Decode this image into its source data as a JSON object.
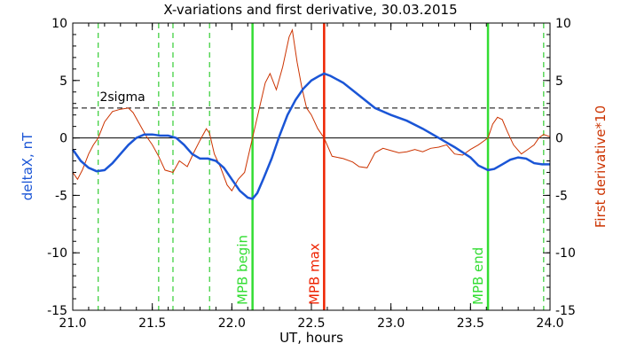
{
  "chart_data": {
    "type": "line",
    "title": "X-variations and first derivative, 30.03.2015",
    "xlabel": "UT, hours",
    "ylabel_left": "deltaX, nT",
    "ylabel_right": "First derivative*10",
    "xlim": [
      21.0,
      24.0
    ],
    "ylim": [
      -15,
      10
    ],
    "x_ticks": [
      "21.0",
      "21.5",
      "22.0",
      "22.5",
      "23.0",
      "23.5",
      "24.0"
    ],
    "x_tick_values": [
      21.0,
      21.5,
      22.0,
      22.5,
      23.0,
      23.5,
      24.0
    ],
    "y_ticks": [
      "-15",
      "-10",
      "-5",
      "0",
      "5",
      "10"
    ],
    "y_tick_values": [
      -15,
      -10,
      -5,
      0,
      5,
      10
    ],
    "sigma": {
      "label": "2sigma",
      "value": 2.6
    },
    "zero_line": 0,
    "colors": {
      "deltaX": "#1a55d6",
      "derivative": "#cc3300",
      "green": "#33dd33",
      "red": "#ee2200",
      "dashed_green": "#33cc33"
    },
    "dashed_green_lines": [
      21.16,
      21.54,
      21.63,
      21.86,
      23.96
    ],
    "vertical_markers": [
      {
        "x": 22.13,
        "label": "MPB begin",
        "color": "#33dd33"
      },
      {
        "x": 22.58,
        "label": "MPB max",
        "color": "#ee2200"
      },
      {
        "x": 23.61,
        "label": "MPB end",
        "color": "#33dd33"
      }
    ],
    "series": [
      {
        "name": "deltaX",
        "axis": "left",
        "x": [
          21.0,
          21.05,
          21.1,
          21.15,
          21.2,
          21.25,
          21.3,
          21.35,
          21.4,
          21.45,
          21.5,
          21.55,
          21.6,
          21.65,
          21.7,
          21.75,
          21.8,
          21.85,
          21.9,
          21.95,
          22.0,
          22.05,
          22.1,
          22.13,
          22.16,
          22.2,
          22.25,
          22.3,
          22.35,
          22.4,
          22.45,
          22.5,
          22.55,
          22.58,
          22.62,
          22.7,
          22.8,
          22.9,
          23.0,
          23.1,
          23.2,
          23.3,
          23.4,
          23.5,
          23.55,
          23.61,
          23.65,
          23.7,
          23.75,
          23.8,
          23.85,
          23.9,
          23.95,
          24.0
        ],
        "y": [
          -1.0,
          -2.0,
          -2.6,
          -2.9,
          -2.8,
          -2.2,
          -1.4,
          -0.6,
          0.0,
          0.3,
          0.3,
          0.2,
          0.2,
          0.0,
          -0.6,
          -1.4,
          -1.8,
          -1.8,
          -2.0,
          -2.6,
          -3.6,
          -4.6,
          -5.2,
          -5.3,
          -4.8,
          -3.5,
          -1.8,
          0.2,
          2.0,
          3.3,
          4.3,
          5.0,
          5.4,
          5.6,
          5.4,
          4.8,
          3.7,
          2.6,
          2.0,
          1.5,
          0.8,
          0.0,
          -0.8,
          -1.7,
          -2.4,
          -2.8,
          -2.7,
          -2.3,
          -1.9,
          -1.7,
          -1.8,
          -2.2,
          -2.3,
          -2.3
        ]
      },
      {
        "name": "derivative",
        "axis": "right",
        "x": [
          21.0,
          21.03,
          21.06,
          21.1,
          21.13,
          21.16,
          21.2,
          21.25,
          21.3,
          21.35,
          21.38,
          21.42,
          21.46,
          21.5,
          21.54,
          21.58,
          21.63,
          21.67,
          21.72,
          21.76,
          21.8,
          21.84,
          21.86,
          21.89,
          21.93,
          21.97,
          22.0,
          22.04,
          22.08,
          22.13,
          22.17,
          22.21,
          22.24,
          22.28,
          22.32,
          22.36,
          22.38,
          22.41,
          22.44,
          22.47,
          22.5,
          22.54,
          22.58,
          22.63,
          22.7,
          22.76,
          22.8,
          22.85,
          22.9,
          22.95,
          23.0,
          23.05,
          23.1,
          23.15,
          23.2,
          23.25,
          23.3,
          23.35,
          23.4,
          23.45,
          23.5,
          23.55,
          23.61,
          23.64,
          23.67,
          23.7,
          23.73,
          23.77,
          23.82,
          23.86,
          23.9,
          23.93,
          23.96,
          24.0
        ],
        "y": [
          -3.0,
          -3.6,
          -2.8,
          -1.4,
          -0.6,
          0.0,
          1.4,
          2.3,
          2.5,
          2.6,
          2.2,
          1.2,
          0.2,
          -0.6,
          -1.6,
          -2.8,
          -3.0,
          -2.0,
          -2.5,
          -1.3,
          -0.2,
          0.8,
          0.4,
          -1.4,
          -2.6,
          -4.1,
          -4.6,
          -3.6,
          -3.0,
          0.0,
          2.4,
          4.8,
          5.6,
          4.2,
          6.2,
          8.8,
          9.4,
          6.6,
          4.4,
          2.6,
          2.0,
          0.8,
          0.0,
          -1.6,
          -1.8,
          -2.1,
          -2.5,
          -2.6,
          -1.3,
          -0.9,
          -1.1,
          -1.3,
          -1.2,
          -1.0,
          -1.2,
          -0.9,
          -0.8,
          -0.6,
          -1.4,
          -1.5,
          -1.0,
          -0.6,
          0.0,
          1.2,
          1.8,
          1.6,
          0.6,
          -0.6,
          -1.4,
          -1.0,
          -0.6,
          0.0,
          0.3,
          0.1
        ]
      }
    ]
  }
}
